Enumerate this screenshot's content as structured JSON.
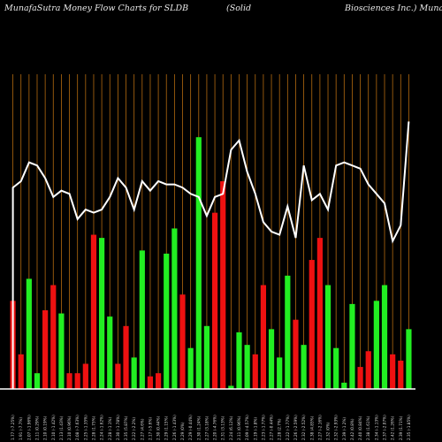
{
  "chart_data": {
    "type": "bar",
    "title_parts": [
      "MunafaSutra  Money Flow  Charts for SLDB",
      "(Solid",
      "Biosciences Inc.) Munafa"
    ],
    "colors": {
      "background": "#000000",
      "grid": "#b36a10",
      "buy": "#22ee22",
      "sell": "#ee1111",
      "line": "#ffffff",
      "baseline": "#ffffff"
    },
    "grid": true,
    "ylim": [
      0,
      100
    ],
    "categories": [
      "1.77 (-7.25%)",
      "1.91 (-7.7%)",
      "2.07 (-1.96%)",
      "2.11 (0.29%)",
      "2.10 (0.19%)",
      "2.10 (-1.42%)",
      "2.13 (1.43%)",
      "2.10 (0.96%)",
      "2.08 (-7.63%)",
      "2.25 (-1.35%)",
      "2.28 (1.75%)",
      "2.24 (-1.62%)",
      "2.28 (-1.1%)",
      "2.30 (-1.78%)",
      "2.35 (5.87%)",
      "2.22 (-2.2%)",
      "2.27 (4.6%)",
      "2.17 (-5.6%)",
      "2.30 (0.44%)",
      "2.29 (1.15%)",
      "2.26 (-1.43%)",
      "2.29 (0%)",
      "2.29 (-0.44%)",
      "2.30 (1.24%)",
      "2.27 (3.18%)",
      "2.20 (-4.76%)",
      "2.31 (3.13%)",
      "2.24 (6.12%)",
      "2.11 (0.96%)",
      "2.09 (-4.57%)",
      "2.19 (-1.8%)",
      "2.23 (-1.77%)",
      "2.27 (-0.44%)",
      "2.28 (2.7%)",
      "2.22 (-1.77%)",
      "2.26 (-2.59%)",
      "2.32 (-2.52%)",
      "2.38 (4.85%)",
      "2.27 (-2.16%)",
      "2.32 (0%)",
      "2.32 (-2.93%)",
      "2.39 (-1.2%)",
      "2.42 (0.8%)",
      "2.40 (0.84%)",
      "2.38 (1.61%)",
      "2.34 (-1.13%)",
      "2.37 (-2.07%)",
      "2.42 (1.26%)",
      "2.39 (1.71%)",
      "2.35 (-1.85%)"
    ],
    "series": [
      {
        "kind": "bars",
        "colors": [
          "sell",
          "sell",
          "buy",
          "buy",
          "sell",
          "sell",
          "buy",
          "sell",
          "sell",
          "sell",
          "sell",
          "buy",
          "buy",
          "sell",
          "sell",
          "buy",
          "buy",
          "sell",
          "sell",
          "buy",
          "buy",
          "sell",
          "buy",
          "buy",
          "buy",
          "sell",
          "sell",
          "buy",
          "buy",
          "buy",
          "sell",
          "sell",
          "buy",
          "buy",
          "buy",
          "sell",
          "buy",
          "sell",
          "sell",
          "buy",
          "buy",
          "buy",
          "buy",
          "sell",
          "sell",
          "buy",
          "buy",
          "sell",
          "sell",
          "buy"
        ],
        "values": [
          28,
          11,
          35,
          5,
          25,
          33,
          24,
          5,
          5,
          8,
          49,
          48,
          23,
          8,
          20,
          10,
          44,
          4,
          5,
          43,
          51,
          30,
          13,
          80,
          20,
          56,
          66,
          1,
          18,
          14,
          11,
          33,
          19,
          10,
          36,
          22,
          14,
          41,
          48,
          33,
          13,
          2,
          27,
          7,
          12,
          28,
          33,
          11,
          9,
          19
        ]
      },
      {
        "kind": "line",
        "values": [
          64,
          66,
          72,
          71,
          67,
          61,
          63,
          62,
          54,
          57,
          56,
          57,
          61,
          67,
          64,
          57,
          66,
          63,
          66,
          65,
          65,
          64,
          62,
          61,
          55,
          61,
          62,
          76,
          79,
          69,
          62,
          53,
          50,
          49,
          58,
          48,
          71,
          60,
          62,
          57,
          71,
          72,
          71,
          70,
          65,
          62,
          59,
          47,
          52,
          85
        ]
      }
    ]
  }
}
